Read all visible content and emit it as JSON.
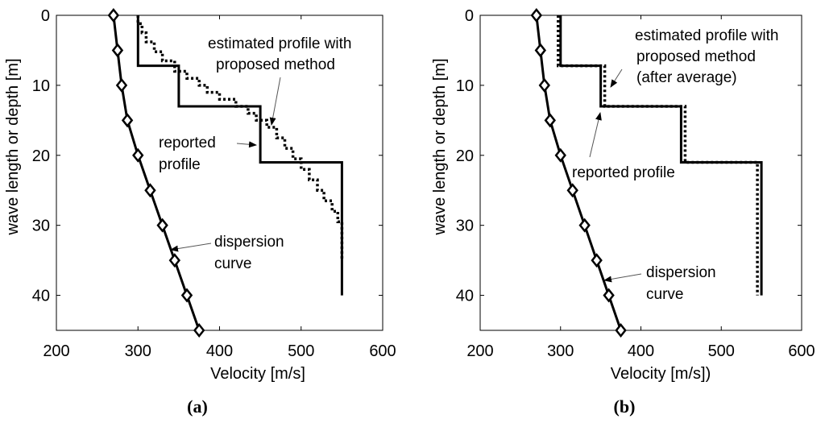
{
  "chart_data": [
    {
      "type": "line",
      "panel_label": "(a)",
      "xlabel": "Velocity [m/s]",
      "ylabel": "wave length or depth [m]",
      "xlim": [
        200,
        600
      ],
      "ylim": [
        0,
        45
      ],
      "y_inverted": true,
      "xticks": [
        200,
        300,
        400,
        500,
        600
      ],
      "yticks": [
        0,
        10,
        20,
        30,
        40
      ],
      "series": [
        {
          "name": "dispersion curve",
          "style": "solid-diamond",
          "x": [
            270,
            275,
            280,
            287,
            300,
            315,
            330,
            345,
            360,
            375
          ],
          "y": [
            0,
            5,
            10,
            15,
            20,
            25,
            30,
            35,
            40,
            45
          ]
        },
        {
          "name": "reported profile",
          "style": "solid-step",
          "x": [
            300,
            300,
            350,
            350,
            450,
            450,
            550,
            550
          ],
          "y": [
            0,
            7.2,
            7.2,
            13,
            13,
            21,
            21,
            40
          ]
        },
        {
          "name": "estimated profile with proposed method",
          "style": "dotted-step",
          "x": [
            300,
            300,
            305,
            305,
            310,
            310,
            320,
            320,
            330,
            330,
            345,
            345,
            360,
            360,
            375,
            375,
            385,
            385,
            400,
            400,
            420,
            420,
            435,
            435,
            445,
            445,
            458,
            458,
            470,
            470,
            480,
            480,
            490,
            490,
            500,
            500,
            510,
            510,
            520,
            520,
            528,
            528,
            538,
            538,
            545,
            545,
            550,
            550
          ],
          "y": [
            0,
            1.2,
            1.2,
            2.5,
            2.5,
            3.8,
            3.8,
            5.2,
            5.2,
            6.5,
            6.5,
            8,
            8,
            9,
            9,
            10,
            10,
            11,
            11,
            12,
            12,
            13,
            13,
            14,
            14,
            15,
            15,
            16,
            16,
            17.5,
            17.5,
            19,
            19,
            20.5,
            20.5,
            22,
            22,
            23.5,
            23.5,
            25,
            25,
            26.5,
            26.5,
            28,
            28,
            29.5,
            29.5,
            35
          ]
        }
      ],
      "annotations": [
        {
          "lines": [
            "estimated profile with",
            "proposed method"
          ]
        },
        {
          "lines": [
            "reported",
            "profile"
          ]
        },
        {
          "lines": [
            "dispersion",
            "curve"
          ]
        }
      ]
    },
    {
      "type": "line",
      "panel_label": "(b)",
      "xlabel": "Velocity [m/s])",
      "ylabel": "wave length or depth [m]",
      "xlim": [
        200,
        600
      ],
      "ylim": [
        0,
        45
      ],
      "y_inverted": true,
      "xticks": [
        200,
        300,
        400,
        500,
        600
      ],
      "yticks": [
        0,
        10,
        20,
        30,
        40
      ],
      "series": [
        {
          "name": "dispersion curve",
          "style": "solid-diamond",
          "x": [
            270,
            275,
            280,
            287,
            300,
            315,
            330,
            345,
            360,
            375
          ],
          "y": [
            0,
            5,
            10,
            15,
            20,
            25,
            30,
            35,
            40,
            45
          ]
        },
        {
          "name": "reported profile",
          "style": "solid-step",
          "x": [
            300,
            300,
            350,
            350,
            450,
            450,
            550,
            550
          ],
          "y": [
            0,
            7.2,
            7.2,
            13,
            13,
            21,
            21,
            40
          ]
        },
        {
          "name": "estimated profile with proposed method (after average)",
          "style": "dotted-step",
          "x": [
            297,
            297,
            355,
            355,
            455,
            455,
            545,
            545
          ],
          "y": [
            0,
            7.2,
            7.2,
            13,
            13,
            21,
            21,
            40
          ]
        }
      ],
      "annotations": [
        {
          "lines": [
            "estimated profile with",
            "proposed method",
            "(after average)"
          ]
        },
        {
          "lines": [
            "reported profile"
          ]
        },
        {
          "lines": [
            "dispersion",
            "curve"
          ]
        }
      ]
    }
  ]
}
